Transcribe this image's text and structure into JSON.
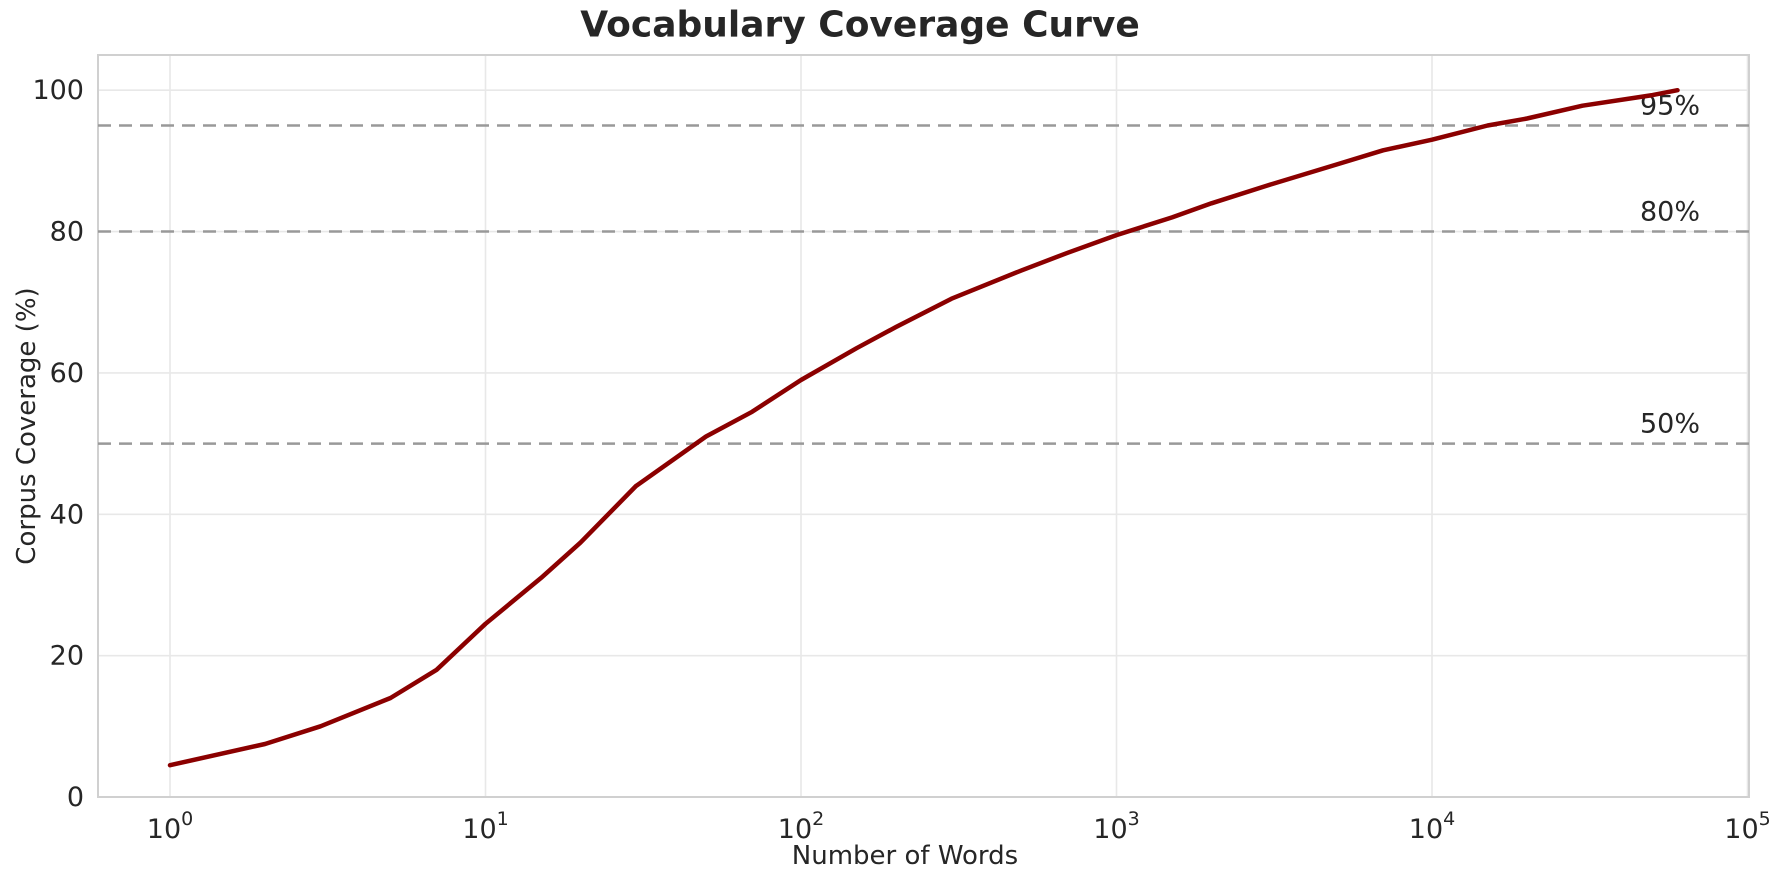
{
  "chart_data": {
    "type": "line",
    "title": "Vocabulary Coverage Curve",
    "xlabel": "Number of Words",
    "ylabel": "Corpus Coverage (%)",
    "x_scale": "log",
    "xlim": [
      0.6,
      105000
    ],
    "ylim": [
      0,
      105
    ],
    "grid": true,
    "legend": "none",
    "x_ticks": [
      {
        "value": 1,
        "base": "10",
        "exponent": "0"
      },
      {
        "value": 10,
        "base": "10",
        "exponent": "1"
      },
      {
        "value": 100,
        "base": "10",
        "exponent": "2"
      },
      {
        "value": 1000,
        "base": "10",
        "exponent": "3"
      },
      {
        "value": 10000,
        "base": "10",
        "exponent": "4"
      },
      {
        "value": 100000,
        "base": "10",
        "exponent": "5"
      }
    ],
    "y_ticks": [
      0,
      20,
      40,
      60,
      80,
      100
    ],
    "series": [
      {
        "name": "vocabulary-coverage",
        "color": "#8B0000",
        "points": [
          [
            1,
            4.5
          ],
          [
            2,
            7.5
          ],
          [
            3,
            10.0
          ],
          [
            5,
            14.0
          ],
          [
            7,
            18.0
          ],
          [
            10,
            24.5
          ],
          [
            15,
            31.0
          ],
          [
            20,
            36.0
          ],
          [
            30,
            44.0
          ],
          [
            50,
            51.0
          ],
          [
            70,
            54.5
          ],
          [
            100,
            59.0
          ],
          [
            150,
            63.5
          ],
          [
            200,
            66.5
          ],
          [
            300,
            70.5
          ],
          [
            500,
            74.5
          ],
          [
            700,
            77.0
          ],
          [
            1000,
            79.5
          ],
          [
            1500,
            82.0
          ],
          [
            2000,
            84.0
          ],
          [
            3000,
            86.5
          ],
          [
            5000,
            89.5
          ],
          [
            7000,
            91.5
          ],
          [
            10000,
            93.0
          ],
          [
            15000,
            95.0
          ],
          [
            20000,
            96.0
          ],
          [
            30000,
            97.8
          ],
          [
            50000,
            99.3
          ],
          [
            60000,
            100.0
          ]
        ]
      }
    ],
    "thresholds": [
      {
        "value": 50,
        "label": "50%"
      },
      {
        "value": 80,
        "label": "80%"
      },
      {
        "value": 95,
        "label": "95%"
      }
    ],
    "colors": {
      "curve": "#8B0000",
      "threshold_line": "#999999",
      "threshold_text": "#262626",
      "grid": "#e8e8e8",
      "spine": "#d0d0d0",
      "text": "#262626",
      "background": "#ffffff"
    }
  }
}
